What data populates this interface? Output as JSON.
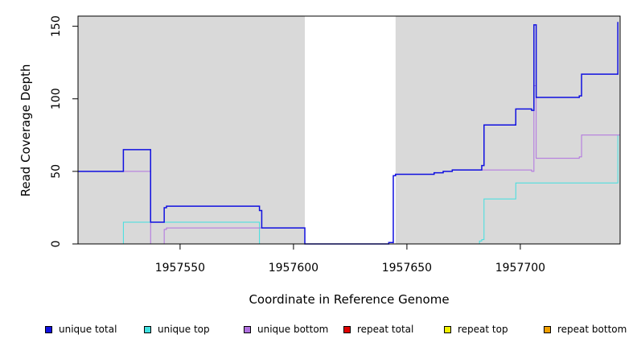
{
  "chart_data": {
    "type": "line",
    "xlabel": "Coordinate in Reference Genome",
    "ylabel": "Read Coverage Depth",
    "xlim": [
      1957505,
      1957744
    ],
    "ylim": [
      0,
      157
    ],
    "x_ticks": [
      1957550,
      1957600,
      1957650,
      1957700
    ],
    "y_ticks": [
      0,
      50,
      100,
      150
    ],
    "shaded_regions": [
      [
        1957505,
        1957605
      ],
      [
        1957645,
        1957744
      ]
    ],
    "colors": {
      "unique total": "#1010e0",
      "unique top": "#40e0e0",
      "unique bottom": "#b070e0",
      "repeat total": "#e00000",
      "repeat top": "#f0f000",
      "repeat bottom": "#f0a000",
      "shade": "#d9d9d9"
    },
    "series": [
      {
        "name": "unique total",
        "points": [
          [
            1957505,
            50
          ],
          [
            1957525,
            50
          ],
          [
            1957525,
            65
          ],
          [
            1957537,
            65
          ],
          [
            1957537,
            15
          ],
          [
            1957543,
            15
          ],
          [
            1957543,
            25
          ],
          [
            1957544,
            25
          ],
          [
            1957544,
            26
          ],
          [
            1957585,
            26
          ],
          [
            1957585,
            23
          ],
          [
            1957586,
            23
          ],
          [
            1957586,
            11
          ],
          [
            1957605,
            11
          ],
          [
            1957605,
            0
          ],
          [
            1957642,
            0
          ],
          [
            1957642,
            1
          ],
          [
            1957644,
            1
          ],
          [
            1957644,
            47
          ],
          [
            1957645,
            47
          ],
          [
            1957645,
            48
          ],
          [
            1957662,
            48
          ],
          [
            1957662,
            49
          ],
          [
            1957666,
            49
          ],
          [
            1957666,
            50
          ],
          [
            1957670,
            50
          ],
          [
            1957670,
            51
          ],
          [
            1957683,
            51
          ],
          [
            1957683,
            54
          ],
          [
            1957684,
            54
          ],
          [
            1957684,
            82
          ],
          [
            1957698,
            82
          ],
          [
            1957698,
            93
          ],
          [
            1957705,
            93
          ],
          [
            1957705,
            92
          ],
          [
            1957706,
            92
          ],
          [
            1957706,
            151
          ],
          [
            1957707,
            151
          ],
          [
            1957707,
            101
          ],
          [
            1957726,
            101
          ],
          [
            1957726,
            102
          ],
          [
            1957727,
            102
          ],
          [
            1957727,
            117
          ],
          [
            1957743,
            117
          ],
          [
            1957743,
            153
          ]
        ]
      },
      {
        "name": "unique top",
        "points": [
          [
            1957505,
            0
          ],
          [
            1957525,
            0
          ],
          [
            1957525,
            15
          ],
          [
            1957585,
            15
          ],
          [
            1957585,
            0
          ],
          [
            1957682,
            0
          ],
          [
            1957682,
            2
          ],
          [
            1957683,
            2
          ],
          [
            1957683,
            3
          ],
          [
            1957684,
            3
          ],
          [
            1957684,
            31
          ],
          [
            1957698,
            31
          ],
          [
            1957698,
            42
          ],
          [
            1957743,
            42
          ],
          [
            1957743,
            75
          ]
        ]
      },
      {
        "name": "unique bottom",
        "points": [
          [
            1957505,
            50
          ],
          [
            1957537,
            50
          ],
          [
            1957537,
            0
          ],
          [
            1957543,
            0
          ],
          [
            1957543,
            10
          ],
          [
            1957544,
            10
          ],
          [
            1957544,
            11
          ],
          [
            1957605,
            11
          ],
          [
            1957605,
            0
          ],
          [
            1957644,
            0
          ],
          [
            1957644,
            47
          ],
          [
            1957645,
            47
          ],
          [
            1957645,
            48
          ],
          [
            1957662,
            48
          ],
          [
            1957662,
            49
          ],
          [
            1957666,
            49
          ],
          [
            1957666,
            50
          ],
          [
            1957670,
            50
          ],
          [
            1957670,
            51
          ],
          [
            1957705,
            51
          ],
          [
            1957705,
            50
          ],
          [
            1957706,
            50
          ],
          [
            1957706,
            109
          ],
          [
            1957707,
            109
          ],
          [
            1957707,
            59
          ],
          [
            1957726,
            59
          ],
          [
            1957726,
            60
          ],
          [
            1957727,
            60
          ],
          [
            1957727,
            75
          ],
          [
            1957744,
            75
          ]
        ]
      },
      {
        "name": "repeat total",
        "points": [
          [
            1957505,
            0
          ],
          [
            1957744,
            0
          ]
        ]
      },
      {
        "name": "repeat top",
        "points": [
          [
            1957505,
            0
          ],
          [
            1957744,
            0
          ]
        ]
      },
      {
        "name": "repeat bottom",
        "points": [
          [
            1957505,
            0
          ],
          [
            1957744,
            0
          ]
        ]
      }
    ],
    "legend": {
      "position": "bottom",
      "entries": [
        "unique total",
        "unique top",
        "unique bottom",
        "repeat total",
        "repeat top",
        "repeat bottom"
      ]
    }
  }
}
